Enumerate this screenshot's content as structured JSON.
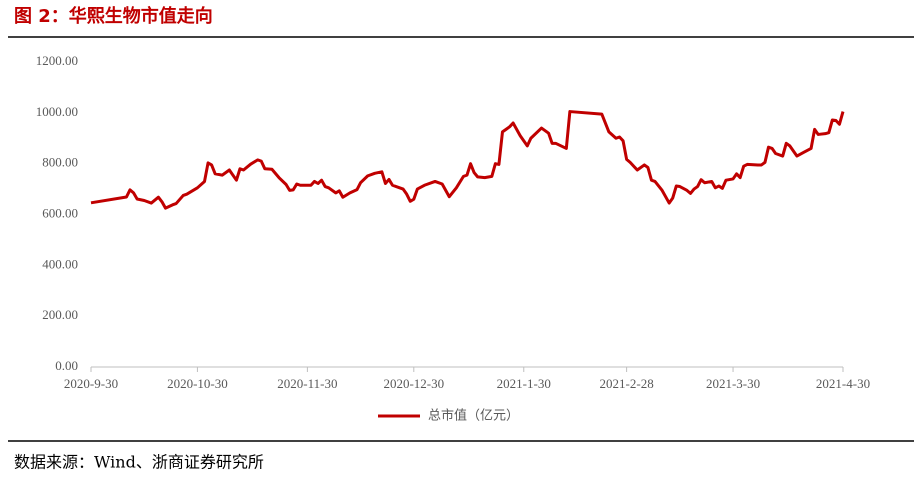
{
  "chart_data": {
    "type": "line",
    "title": "图 2：华熙生物市值走向",
    "x": [
      "2020-09-30",
      "2020-10-10",
      "2020-10-11",
      "2020-10-12",
      "2020-10-13",
      "2020-10-15",
      "2020-10-17",
      "2020-10-19",
      "2020-10-20",
      "2020-10-21",
      "2020-10-23",
      "2020-10-24",
      "2020-10-26",
      "2020-10-27",
      "2020-10-30",
      "2020-11-01",
      "2020-11-02",
      "2020-11-03",
      "2020-11-04",
      "2020-11-06",
      "2020-11-08",
      "2020-11-10",
      "2020-11-11",
      "2020-11-12",
      "2020-11-14",
      "2020-11-16",
      "2020-11-17",
      "2020-11-18",
      "2020-11-20",
      "2020-11-22",
      "2020-11-24",
      "2020-11-25",
      "2020-11-26",
      "2020-11-27",
      "2020-11-28",
      "2020-12-01",
      "2020-12-02",
      "2020-12-03",
      "2020-12-04",
      "2020-12-05",
      "2020-12-06",
      "2020-12-08",
      "2020-12-09",
      "2020-12-10",
      "2020-12-12",
      "2020-12-14",
      "2020-12-15",
      "2020-12-17",
      "2020-12-19",
      "2020-12-21",
      "2020-12-22",
      "2020-12-23",
      "2020-12-24",
      "2020-12-26",
      "2020-12-27",
      "2020-12-28",
      "2020-12-29",
      "2020-12-30",
      "2020-12-31",
      "2021-01-02",
      "2021-01-05",
      "2021-01-07",
      "2021-01-09",
      "2021-01-11",
      "2021-01-13",
      "2021-01-14",
      "2021-01-15",
      "2021-01-16",
      "2021-01-17",
      "2021-01-19",
      "2021-01-21",
      "2021-01-22",
      "2021-01-23",
      "2021-01-24",
      "2021-01-26",
      "2021-01-27",
      "2021-01-29",
      "2021-01-31",
      "2021-02-01",
      "2021-02-04",
      "2021-02-06",
      "2021-02-07",
      "2021-02-08",
      "2021-02-11",
      "2021-02-12",
      "2021-02-21",
      "2021-02-23",
      "2021-02-25",
      "2021-02-26",
      "2021-02-27",
      "2021-02-28",
      "2021-03-01",
      "2021-03-03",
      "2021-03-05",
      "2021-03-06",
      "2021-03-07",
      "2021-03-08",
      "2021-03-10",
      "2021-03-12",
      "2021-03-13",
      "2021-03-14",
      "2021-03-15",
      "2021-03-17",
      "2021-03-18",
      "2021-03-19",
      "2021-03-20",
      "2021-03-21",
      "2021-03-22",
      "2021-03-24",
      "2021-03-25",
      "2021-03-26",
      "2021-03-27",
      "2021-03-28",
      "2021-03-30",
      "2021-03-31",
      "2021-04-01",
      "2021-04-02",
      "2021-04-03",
      "2021-04-06",
      "2021-04-07",
      "2021-04-08",
      "2021-04-09",
      "2021-04-10",
      "2021-04-11",
      "2021-04-13",
      "2021-04-14",
      "2021-04-15",
      "2021-04-17",
      "2021-04-19",
      "2021-04-21",
      "2021-04-22",
      "2021-04-23",
      "2021-04-25",
      "2021-04-26",
      "2021-04-27",
      "2021-04-28",
      "2021-04-29",
      "2021-04-30"
    ],
    "series": [
      {
        "name": "总市值（亿元）",
        "color": "#c00000",
        "values": [
          646,
          669,
          697,
          685,
          661,
          655,
          645,
          668,
          650,
          625,
          638,
          643,
          675,
          680,
          705,
          730,
          803,
          795,
          760,
          755,
          775,
          735,
          780,
          775,
          798,
          815,
          810,
          780,
          778,
          745,
          718,
          695,
          697,
          720,
          715,
          715,
          730,
          722,
          735,
          710,
          705,
          685,
          693,
          668,
          685,
          698,
          725,
          752,
          762,
          768,
          722,
          738,
          715,
          705,
          700,
          680,
          652,
          660,
          700,
          715,
          730,
          720,
          670,
          705,
          750,
          755,
          800,
          765,
          748,
          745,
          750,
          800,
          797,
          925,
          945,
          960,
          910,
          870,
          900,
          940,
          920,
          880,
          880,
          860,
          1005,
          995,
          925,
          900,
          905,
          890,
          817,
          805,
          775,
          795,
          785,
          735,
          730,
          695,
          645,
          665,
          712,
          710,
          695,
          683,
          700,
          710,
          737,
          725,
          730,
          705,
          712,
          703,
          735,
          740,
          760,
          745,
          790,
          797,
          795,
          795,
          805,
          865,
          860,
          840,
          830,
          880,
          870,
          830,
          845,
          860,
          935,
          915,
          918,
          922,
          972,
          970,
          955,
          1005
        ]
      }
    ],
    "xlim": [
      "2020-09-30",
      "2021-04-30"
    ],
    "xticks": [
      {
        "value": "2020-09-30",
        "label": "2020-9-30"
      },
      {
        "value": "2020-10-30",
        "label": "2020-10-30"
      },
      {
        "value": "2020-11-30",
        "label": "2020-11-30"
      },
      {
        "value": "2020-12-30",
        "label": "2020-12-30"
      },
      {
        "value": "2021-01-30",
        "label": "2021-1-30"
      },
      {
        "value": "2021-02-28",
        "label": "2021-2-28"
      },
      {
        "value": "2021-03-30",
        "label": "2021-3-30"
      },
      {
        "value": "2021-04-30",
        "label": "2021-4-30"
      }
    ],
    "ylim": [
      0,
      1200
    ],
    "yticks": [
      {
        "value": 0,
        "label": "0.00"
      },
      {
        "value": 200,
        "label": "200.00"
      },
      {
        "value": 400,
        "label": "400.00"
      },
      {
        "value": 600,
        "label": "600.00"
      },
      {
        "value": 800,
        "label": "800.00"
      },
      {
        "value": 1000,
        "label": "1000.00"
      },
      {
        "value": 1200,
        "label": "1200.00"
      }
    ],
    "grid": false,
    "legend": "bottom"
  },
  "source": "数据来源：Wind、浙商证券研究所"
}
